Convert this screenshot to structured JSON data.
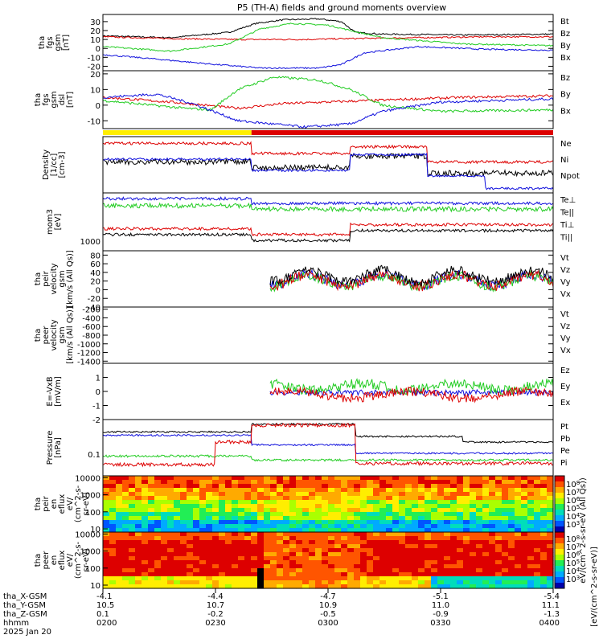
{
  "figure_title": "P5 (TH-A) fields and ground moments overview",
  "colors": {
    "black": "#000000",
    "red": "#dd0000",
    "green": "#22cc22",
    "blue": "#1010dd",
    "yellow": "#ffee00"
  },
  "chart_data": [
    {
      "type": "line",
      "id": "fgs_gsm",
      "ylabel": [
        "tha",
        "fgs",
        "gsm",
        "[nT]"
      ],
      "ylim": [
        -25,
        38
      ],
      "yticks": [
        -20,
        -10,
        0,
        10,
        20,
        30
      ],
      "series": [
        {
          "name": "Bt",
          "color": "#000000",
          "points": [
            [
              0,
              14
            ],
            [
              0.15,
              12
            ],
            [
              0.28,
              18
            ],
            [
              0.34,
              28
            ],
            [
              0.4,
              32
            ],
            [
              0.48,
              33
            ],
            [
              0.53,
              30
            ],
            [
              0.56,
              18
            ],
            [
              0.62,
              16
            ],
            [
              0.8,
              15
            ],
            [
              1,
              16
            ]
          ]
        },
        {
          "name": "Bz",
          "color": "#dd0000",
          "points": [
            [
              0,
              13
            ],
            [
              0.15,
              11
            ],
            [
              0.3,
              10
            ],
            [
              0.45,
              10
            ],
            [
              0.55,
              11
            ],
            [
              0.7,
              12
            ],
            [
              0.85,
              13
            ],
            [
              1,
              13
            ]
          ]
        },
        {
          "name": "By",
          "color": "#22cc22",
          "points": [
            [
              0,
              2
            ],
            [
              0.15,
              -3
            ],
            [
              0.28,
              5
            ],
            [
              0.35,
              22
            ],
            [
              0.42,
              28
            ],
            [
              0.5,
              26
            ],
            [
              0.55,
              20
            ],
            [
              0.62,
              12
            ],
            [
              0.8,
              5
            ],
            [
              1,
              3
            ]
          ]
        },
        {
          "name": "Bx",
          "color": "#1010dd",
          "points": [
            [
              0,
              -7
            ],
            [
              0.12,
              -12
            ],
            [
              0.25,
              -18
            ],
            [
              0.35,
              -22
            ],
            [
              0.48,
              -22
            ],
            [
              0.53,
              -18
            ],
            [
              0.58,
              -5
            ],
            [
              0.7,
              2
            ],
            [
              0.85,
              -1
            ],
            [
              1,
              -2
            ]
          ]
        }
      ]
    },
    {
      "type": "line",
      "id": "fgs_gsm_dsl",
      "ylabel": [
        "tha",
        "fgs",
        "gsm",
        "dsl",
        "[nT]"
      ],
      "ylim": [
        -15,
        22
      ],
      "yticks": [
        -10,
        0,
        10,
        20
      ],
      "series": [
        {
          "name": "Bz",
          "color": "#dd0000",
          "points": [
            [
              0,
              5
            ],
            [
              0.15,
              2
            ],
            [
              0.3,
              -2
            ],
            [
              0.4,
              1
            ],
            [
              0.5,
              2
            ],
            [
              0.6,
              3
            ],
            [
              0.8,
              5
            ],
            [
              1,
              6
            ]
          ]
        },
        {
          "name": "By",
          "color": "#22cc22",
          "points": [
            [
              0,
              3
            ],
            [
              0.18,
              -2
            ],
            [
              0.24,
              -3
            ],
            [
              0.3,
              10
            ],
            [
              0.38,
              18
            ],
            [
              0.48,
              16
            ],
            [
              0.55,
              10
            ],
            [
              0.62,
              0
            ],
            [
              0.75,
              -4
            ],
            [
              1,
              -3
            ]
          ]
        },
        {
          "name": "Bx",
          "color": "#1010dd",
          "points": [
            [
              0,
              5
            ],
            [
              0.12,
              7
            ],
            [
              0.2,
              1
            ],
            [
              0.3,
              -10
            ],
            [
              0.45,
              -14
            ],
            [
              0.55,
              -12
            ],
            [
              0.62,
              -4
            ],
            [
              0.75,
              2
            ],
            [
              1,
              4
            ]
          ]
        }
      ]
    },
    {
      "type": "line",
      "id": "density",
      "ylabel": [
        "Density",
        "[1/cc]",
        "[cm-3]"
      ],
      "series": [
        {
          "name": "Ne",
          "color": "#dd0000"
        },
        {
          "name": "Ni",
          "color": "#000000"
        },
        {
          "name": "Npot",
          "color": "#1010dd"
        }
      ]
    },
    {
      "type": "line",
      "id": "temperature",
      "ylabel": [
        "mom3",
        "[eV]"
      ],
      "yticks": [
        1000
      ],
      "series": [
        {
          "name": "Te⊥",
          "color": "#dd0000"
        },
        {
          "name": "Te||",
          "color": "#000000"
        },
        {
          "name": "Ti⊥",
          "color": "#22cc22"
        },
        {
          "name": "Ti||",
          "color": "#22cc22"
        }
      ]
    },
    {
      "type": "line",
      "id": "peir_velocity",
      "ylabel": [
        "tha",
        "peir",
        "velocity",
        "gsm",
        "[km/s (All Qs)]"
      ],
      "ylim": [
        -40,
        90
      ],
      "yticks": [
        -40,
        -20,
        0,
        20,
        40,
        60,
        80
      ],
      "series": [
        {
          "name": "Vt",
          "color": "#000000"
        },
        {
          "name": "Vz",
          "color": "#dd0000"
        },
        {
          "name": "Vy",
          "color": "#22cc22"
        },
        {
          "name": "Vx",
          "color": "#1010dd"
        }
      ]
    },
    {
      "type": "line",
      "id": "peer_velocity",
      "ylabel": [
        "tha",
        "peer",
        "velocity",
        "gsm",
        "[km/s (All Qs)]"
      ],
      "ylim": [
        -1450,
        -150
      ],
      "yticks": [
        -200,
        -400,
        -600,
        -800,
        -1000,
        -1200,
        -1400
      ],
      "series": [
        {
          "name": "Vt",
          "color": "#000000"
        },
        {
          "name": "Vz",
          "color": "#dd0000"
        },
        {
          "name": "Vy",
          "color": "#22cc22"
        },
        {
          "name": "Vx",
          "color": "#1010dd"
        }
      ]
    },
    {
      "type": "line",
      "id": "efield",
      "ylabel": [
        "E=-VxB",
        "[mV/m]"
      ],
      "ylim": [
        -2,
        2
      ],
      "yticks": [
        -2,
        -1,
        0,
        1
      ],
      "series": [
        {
          "name": "Ez",
          "color": "#dd0000"
        },
        {
          "name": "Ey",
          "color": "#22cc22"
        },
        {
          "name": "Ex",
          "color": "#1010dd"
        }
      ]
    },
    {
      "type": "line",
      "id": "pressure",
      "ylabel": [
        "Pressure",
        "[nPa]"
      ],
      "yticks": [
        0.1
      ],
      "series": [
        {
          "name": "Pt",
          "color": "#000000"
        },
        {
          "name": "Pb",
          "color": "#dd0000"
        },
        {
          "name": "Pe",
          "color": "#22cc22"
        },
        {
          "name": "Pi",
          "color": "#1010dd"
        }
      ]
    },
    {
      "type": "heatmap",
      "id": "peir_eflux",
      "ylabel": [
        "tha",
        "peir",
        "en",
        "eflux",
        "eV/",
        "(cm^2-s-",
        "sr-eV)"
      ],
      "yticks": [
        10,
        100,
        1000,
        10000
      ]
    },
    {
      "type": "heatmap",
      "id": "peer_eflux",
      "ylabel": [
        "tha",
        "peer",
        "en",
        "eflux",
        "eV/",
        "(cm^2-s-",
        "sr-eV)"
      ],
      "yticks": [
        10,
        100,
        1000,
        10000
      ]
    }
  ],
  "colorbar": {
    "label": "[eV/(cm^2-s-sr-eV)]",
    "upper_label": "eV/(cm^2-s-sr-eV (All Qs))",
    "upper_ticks": [
      "10^8",
      "10^7",
      "10^6",
      "10^5",
      "10^4",
      "10^3"
    ],
    "lower_ticks": [
      "10^8",
      "10^7",
      "10^6",
      "10^5",
      "10^4",
      "10^3"
    ]
  },
  "x_axis": {
    "rows": [
      {
        "label": "tha_X-GSM",
        "values": [
          "-4.1",
          "-4.4",
          "-4.7",
          "-5.1",
          "-5.4"
        ]
      },
      {
        "label": "tha_Y-GSM",
        "values": [
          "10.5",
          "10.7",
          "10.9",
          "11.0",
          "11.1"
        ]
      },
      {
        "label": "tha_Z-GSM",
        "values": [
          "0.1",
          "-0.2",
          "-0.5",
          "-0.9",
          "-1.3"
        ]
      },
      {
        "label": "hhmm",
        "values": [
          "0200",
          "0230",
          "0300",
          "0330",
          "0400"
        ]
      }
    ],
    "date": "2025 Jan 20"
  }
}
